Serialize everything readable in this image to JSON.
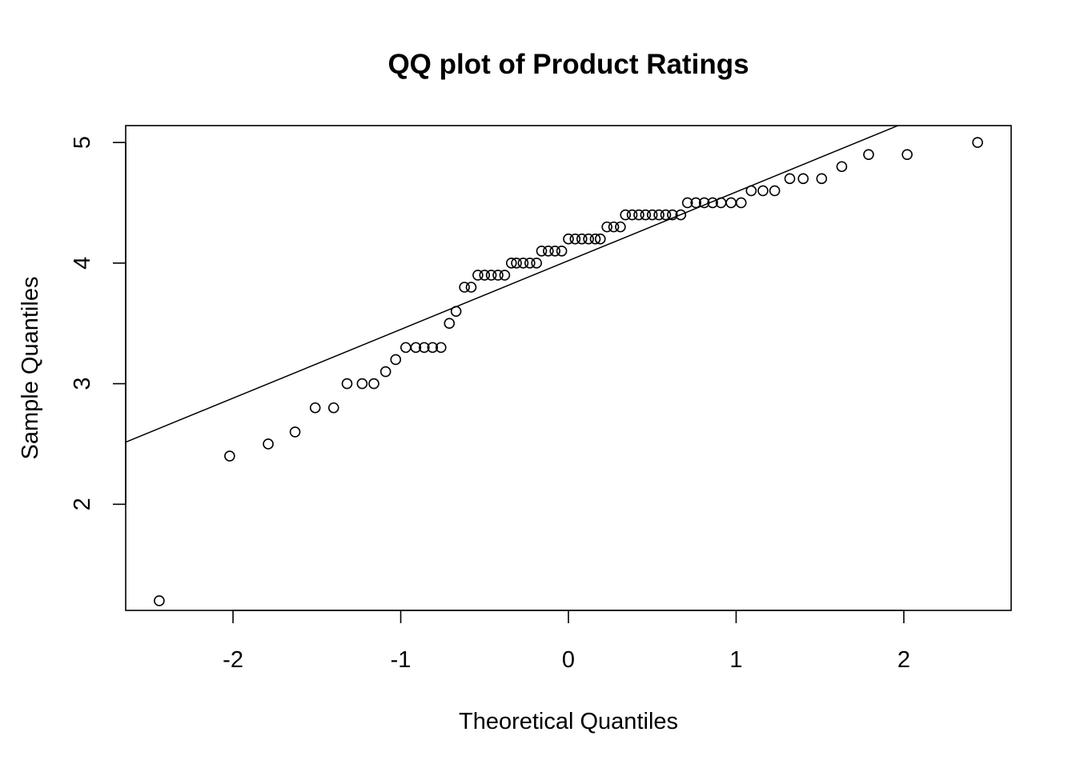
{
  "chart_data": {
    "type": "scatter",
    "title": "QQ plot of Product Ratings",
    "xlabel": "Theoretical Quantiles",
    "ylabel": "Sample Quantiles",
    "xlim": [
      -2.64,
      2.64
    ],
    "ylim": [
      1.12,
      5.14
    ],
    "xticks": [
      -2,
      -1,
      0,
      1,
      2
    ],
    "yticks": [
      2,
      3,
      4,
      5
    ],
    "grid": false,
    "legend": "none",
    "reference_line": {
      "intercept": 4.02,
      "slope": 0.57
    },
    "points": {
      "x": [
        -2.44,
        -2.02,
        -1.79,
        -1.63,
        -1.51,
        -1.4,
        -1.32,
        -1.23,
        -1.16,
        -1.09,
        -1.03,
        -0.97,
        -0.91,
        -0.86,
        -0.81,
        -0.76,
        -0.71,
        -0.67,
        -0.62,
        -0.58,
        -0.54,
        -0.5,
        -0.46,
        -0.42,
        -0.38,
        -0.34,
        -0.31,
        -0.27,
        -0.23,
        -0.19,
        -0.16,
        -0.12,
        -0.08,
        -0.04,
        0.0,
        0.04,
        0.08,
        0.12,
        0.16,
        0.19,
        0.23,
        0.27,
        0.31,
        0.34,
        0.38,
        0.42,
        0.46,
        0.5,
        0.54,
        0.58,
        0.62,
        0.67,
        0.71,
        0.76,
        0.81,
        0.86,
        0.91,
        0.97,
        1.03,
        1.09,
        1.16,
        1.23,
        1.32,
        1.4,
        1.51,
        1.63,
        1.79,
        2.02,
        2.44
      ],
      "y": [
        1.2,
        2.4,
        2.5,
        2.6,
        2.8,
        2.8,
        3.0,
        3.0,
        3.0,
        3.1,
        3.2,
        3.3,
        3.3,
        3.3,
        3.3,
        3.3,
        3.5,
        3.6,
        3.8,
        3.8,
        3.9,
        3.9,
        3.9,
        3.9,
        3.9,
        4.0,
        4.0,
        4.0,
        4.0,
        4.0,
        4.1,
        4.1,
        4.1,
        4.1,
        4.2,
        4.2,
        4.2,
        4.2,
        4.2,
        4.2,
        4.3,
        4.3,
        4.3,
        4.4,
        4.4,
        4.4,
        4.4,
        4.4,
        4.4,
        4.4,
        4.4,
        4.4,
        4.5,
        4.5,
        4.5,
        4.5,
        4.5,
        4.5,
        4.5,
        4.6,
        4.6,
        4.6,
        4.7,
        4.7,
        4.7,
        4.8,
        4.9,
        4.9,
        5.0
      ]
    }
  }
}
